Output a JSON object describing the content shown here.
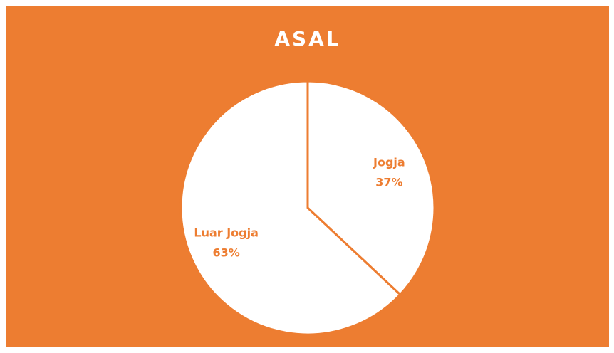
{
  "chart_data": {
    "type": "pie",
    "title": "ASAL",
    "categories": [
      "Jogja",
      "Luar Jogja"
    ],
    "values": [
      37,
      63
    ],
    "value_labels": [
      "37%",
      "63%"
    ],
    "colors": [
      "#ffffff",
      "#ffffff"
    ],
    "background": "#ED7D31",
    "label_color": "#ED7D31"
  }
}
